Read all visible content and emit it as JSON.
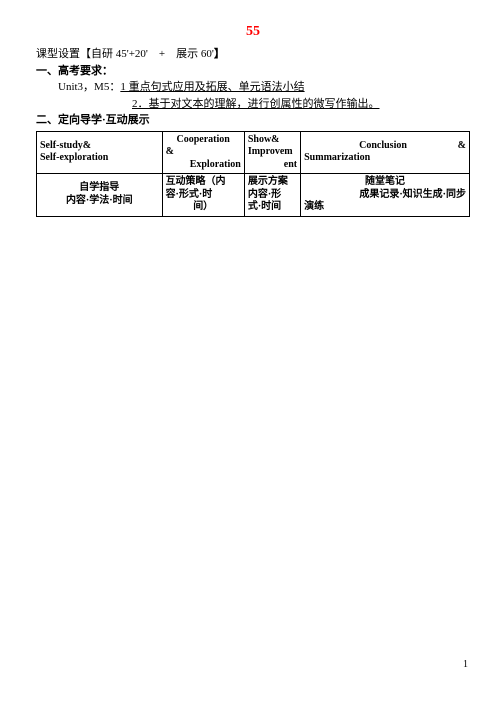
{
  "page_number_top": "55",
  "course_setting_prefix": "课型设置【自研 45'+20'　+　展示 60'",
  "course_setting_suffix": "】",
  "section_exam": "一、高考要求：",
  "unit_line": "Unit3，M5：",
  "unit_item1": "1 重点句式应用及拓展、单元语法小结",
  "unit_item2": "2．基于对文本的理解，进行创属性的微写作输出。",
  "section_guide": "二、定向导学·互动展示",
  "table": {
    "header": {
      "col1_line1": "Self-study&",
      "col1_line2": "Self-exploration",
      "col2_line1": "Cooperation",
      "col2_amp": "&",
      "col2_line2": "Exploration",
      "col3_line1": "Show&",
      "col3_line2": "Improvem",
      "col3_line3": "ent",
      "col4_line1": "Conclusion",
      "col4_amp": "&",
      "col4_line2": "Summarization"
    },
    "row": {
      "col1_line1": "自学指导",
      "col1_line2": "内容·学法·时间",
      "col2_line1": "互动策略（内",
      "col2_line2": "容·形式·时",
      "col2_line3": "间）",
      "col3_line1": "展示方案",
      "col3_line2": "内容·形",
      "col3_line3": "式·时间",
      "col4_line1": "随堂笔记",
      "col4_line2": "成果记录·知识生成·同步",
      "col4_line3": "演练"
    }
  },
  "page_footer": "1",
  "layout": {
    "col_widths": [
      "29%",
      "19%",
      "13%",
      "39%"
    ]
  }
}
